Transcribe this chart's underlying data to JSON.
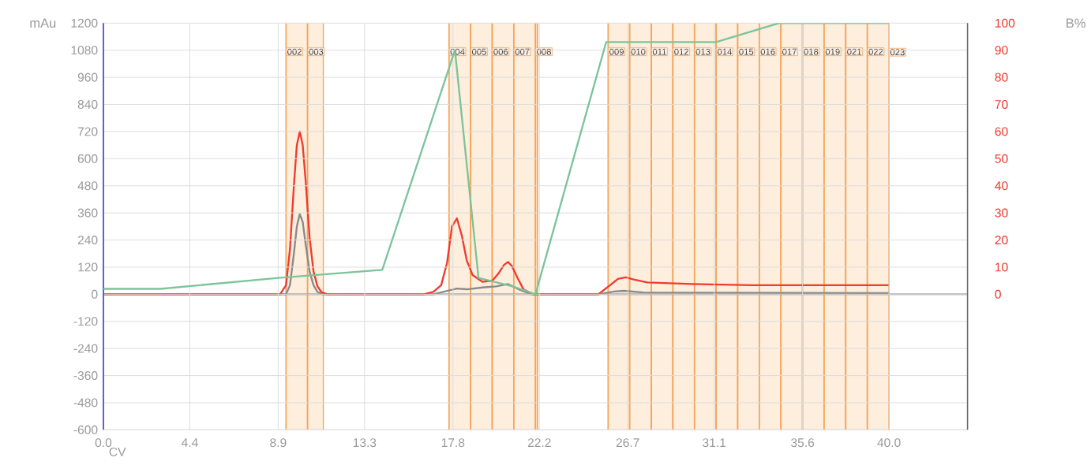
{
  "chart_data": {
    "type": "line",
    "xlabel": "CV",
    "ylabel": "mAu",
    "y2label": "B%",
    "xlim": [
      0,
      44
    ],
    "xticks": [
      {
        "value": 0,
        "label": "0.0"
      },
      4.4,
      8.9,
      13.3,
      17.8,
      22.2,
      26.7,
      31.1,
      35.6,
      {
        "value": 40,
        "label": "40.0"
      }
    ],
    "ylim": [
      -600,
      1200
    ],
    "yticks": [
      -600,
      -480,
      -360,
      -240,
      -120,
      0,
      120,
      240,
      360,
      480,
      600,
      720,
      840,
      960,
      1080,
      1200
    ],
    "y2lim": [
      -50,
      100
    ],
    "y2ticks": [
      0,
      10,
      20,
      30,
      40,
      50,
      60,
      70,
      80,
      90,
      100
    ],
    "grid": true,
    "marker": "none",
    "series": [
      {
        "color": "#7cc49a",
        "axis": "y2",
        "x": [
          0,
          2.9,
          8.9,
          14.2,
          17.9,
          19.1,
          20.8,
          22.0,
          25.6,
          31.2,
          34.4,
          40.0
        ],
        "values": [
          2,
          2,
          6,
          9,
          90,
          6,
          3,
          0,
          93,
          93,
          100,
          100
        ]
      },
      {
        "color": "#8a8a8a",
        "x": [
          0,
          9.3,
          9.5,
          9.7,
          9.85,
          10.0,
          10.15,
          10.3,
          10.5,
          10.7,
          10.9,
          11.2,
          16.8,
          17.5,
          18.0,
          18.5,
          19.3,
          20.0,
          20.6,
          21.2,
          21.8,
          25.2,
          26.0,
          26.5,
          27.5,
          40.0
        ],
        "values": [
          0,
          0,
          40,
          180,
          300,
          355,
          320,
          220,
          100,
          40,
          10,
          0,
          0,
          15,
          25,
          22,
          30,
          35,
          45,
          20,
          0,
          0,
          12,
          15,
          8,
          5
        ]
      },
      {
        "color": "#f03a2e",
        "x": [
          0,
          9.0,
          9.3,
          9.5,
          9.7,
          9.85,
          10.0,
          10.15,
          10.3,
          10.5,
          10.7,
          10.9,
          11.1,
          11.4,
          16.3,
          16.8,
          17.2,
          17.5,
          17.75,
          18.0,
          18.25,
          18.5,
          18.8,
          19.3,
          19.8,
          20.1,
          20.4,
          20.6,
          20.8,
          21.1,
          21.4,
          21.9,
          25.2,
          25.8,
          26.2,
          26.6,
          27.0,
          27.7,
          30.0,
          33.0,
          40.0
        ],
        "values": [
          0,
          0,
          40,
          200,
          480,
          660,
          720,
          660,
          500,
          250,
          100,
          35,
          10,
          0,
          0,
          10,
          40,
          140,
          300,
          336,
          260,
          150,
          85,
          55,
          60,
          90,
          130,
          143,
          125,
          70,
          20,
          0,
          0,
          40,
          68,
          75,
          65,
          52,
          45,
          40,
          40
        ]
      }
    ],
    "ref_lines": [
      {
        "axis": "y",
        "value": 0,
        "label": null,
        "color": "#7a7a7a"
      }
    ],
    "bands": [
      {
        "axis": "x",
        "from": 9.3,
        "to": 10.4,
        "label": "002",
        "color": "#fdeedd"
      },
      {
        "axis": "x",
        "from": 10.4,
        "to": 11.2,
        "label": "003",
        "color": "#fdeedd"
      },
      {
        "axis": "x",
        "from": 17.6,
        "to": 18.7,
        "label": "004",
        "color": "#fdeedd"
      },
      {
        "axis": "x",
        "from": 18.7,
        "to": 19.8,
        "label": "005",
        "color": "#fdeedd"
      },
      {
        "axis": "x",
        "from": 19.8,
        "to": 20.9,
        "label": "006",
        "color": "#fdeedd"
      },
      {
        "axis": "x",
        "from": 20.9,
        "to": 22.0,
        "label": "007",
        "color": "#fdeedd"
      },
      {
        "axis": "x",
        "from": 22.0,
        "to": 22.1,
        "label": "008",
        "color": "#fdeedd"
      },
      {
        "axis": "x",
        "from": 25.7,
        "to": 26.8,
        "label": "009",
        "color": "#fdeedd"
      },
      {
        "axis": "x",
        "from": 26.8,
        "to": 27.9,
        "label": "010",
        "color": "#fdeedd"
      },
      {
        "axis": "x",
        "from": 27.9,
        "to": 29.0,
        "label": "011",
        "color": "#fdeedd"
      },
      {
        "axis": "x",
        "from": 29.0,
        "to": 30.1,
        "label": "012",
        "color": "#fdeedd"
      },
      {
        "axis": "x",
        "from": 30.1,
        "to": 31.2,
        "label": "013",
        "color": "#fdeedd"
      },
      {
        "axis": "x",
        "from": 31.2,
        "to": 32.3,
        "label": "014",
        "color": "#fdeedd"
      },
      {
        "axis": "x",
        "from": 32.3,
        "to": 33.4,
        "label": "015",
        "color": "#fdeedd"
      },
      {
        "axis": "x",
        "from": 33.4,
        "to": 34.5,
        "label": "016",
        "color": "#fdeedd"
      },
      {
        "axis": "x",
        "from": 34.5,
        "to": 35.6,
        "label": "017",
        "color": "#fdeedd"
      },
      {
        "axis": "x",
        "from": 35.6,
        "to": 36.7,
        "label": "018",
        "color": "#fdeedd"
      },
      {
        "axis": "x",
        "from": 36.7,
        "to": 37.8,
        "label": "019",
        "color": "#fdeedd"
      },
      {
        "axis": "x",
        "from": 37.8,
        "to": 38.9,
        "label": "021",
        "color": "#fdeedd"
      },
      {
        "axis": "x",
        "from": 38.9,
        "to": 40.0,
        "label": "022",
        "color": "#fdeedd"
      }
    ],
    "annotations": [
      {
        "text": "023",
        "x": 40.0,
        "y": 1090
      }
    ]
  }
}
